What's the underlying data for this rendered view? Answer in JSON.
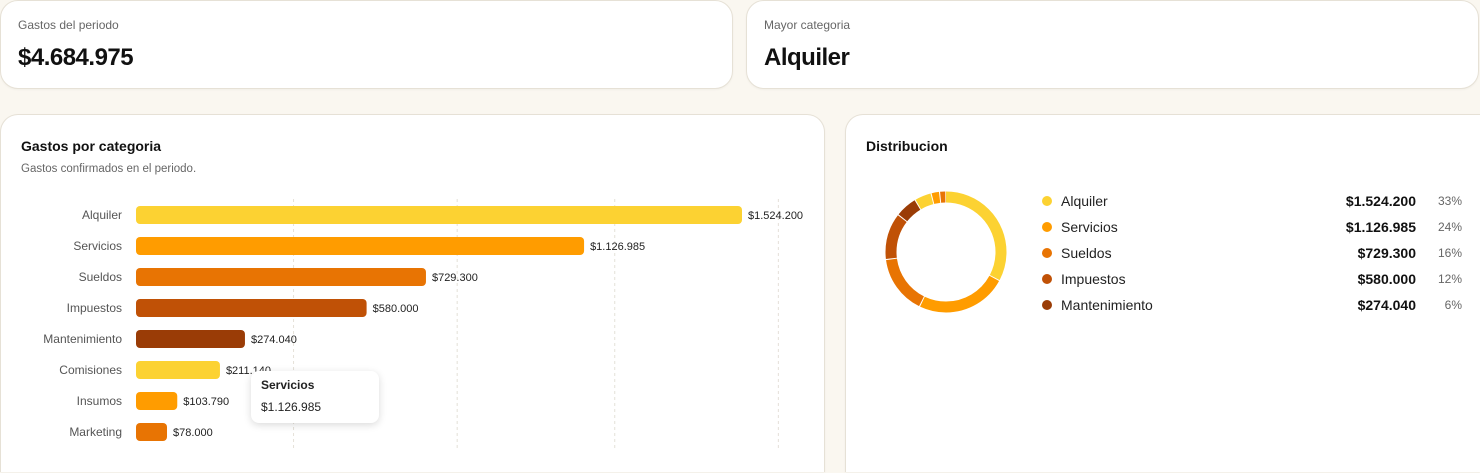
{
  "kpis": {
    "total": {
      "label": "Gastos del periodo",
      "value": "$4.684.975"
    },
    "top_category": {
      "label": "Mayor categoria",
      "value": "Alquiler"
    }
  },
  "bar_card": {
    "title": "Gastos por categoria",
    "subtitle": "Gastos confirmados en el periodo."
  },
  "tooltip": {
    "category": "Servicios",
    "value": "$1.126.985"
  },
  "donut_card": {
    "title": "Distribucion"
  },
  "legend": [
    {
      "name": "Alquiler",
      "amount": "$1.524.200",
      "pct": "33%",
      "color": "#fcd232"
    },
    {
      "name": "Servicios",
      "amount": "$1.126.985",
      "pct": "24%",
      "color": "#ff9c00"
    },
    {
      "name": "Sueldos",
      "amount": "$729.300",
      "pct": "16%",
      "color": "#e87403"
    },
    {
      "name": "Impuestos",
      "amount": "$580.000",
      "pct": "12%",
      "color": "#c05106"
    },
    {
      "name": "Mantenimiento",
      "amount": "$274.040",
      "pct": "6%",
      "color": "#9a3c06"
    }
  ],
  "chart_data": [
    {
      "type": "bar",
      "orientation": "horizontal",
      "title": "Gastos por categoria",
      "categories": [
        "Alquiler",
        "Servicios",
        "Sueldos",
        "Impuestos",
        "Mantenimiento",
        "Comisiones",
        "Insumos",
        "Marketing"
      ],
      "values": [
        1524200,
        1126985,
        729300,
        580000,
        274040,
        211140,
        103790,
        78000
      ],
      "labels": [
        "$1.524.200",
        "$1.126.985",
        "$729.300",
        "$580.000",
        "$274.040",
        "$211.140",
        "$103.790",
        "$78.000"
      ],
      "colors": [
        "#fcd232",
        "#ff9c00",
        "#e87403",
        "#c05106",
        "#9a3c06",
        "#fcd232",
        "#ff9c00",
        "#e87403"
      ],
      "xlim": [
        0,
        1524200
      ],
      "grid": true
    },
    {
      "type": "pie",
      "variant": "donut",
      "title": "Distribucion",
      "categories": [
        "Alquiler",
        "Servicios",
        "Sueldos",
        "Impuestos",
        "Mantenimiento",
        "Comisiones",
        "Insumos",
        "Marketing"
      ],
      "values": [
        1524200,
        1126985,
        729300,
        580000,
        274040,
        211140,
        103790,
        78000
      ],
      "colors": [
        "#fcd232",
        "#ff9c00",
        "#e87403",
        "#c05106",
        "#9a3c06",
        "#fcd232",
        "#ff9c00",
        "#e87403"
      ]
    }
  ]
}
